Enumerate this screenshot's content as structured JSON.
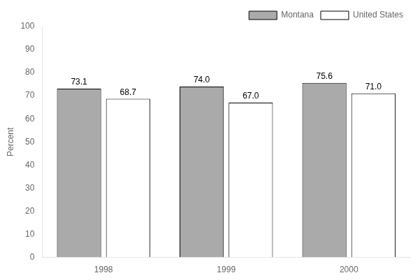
{
  "chart_data": {
    "type": "bar",
    "categories": [
      "1998",
      "1999",
      "2000"
    ],
    "series": [
      {
        "name": "Montana",
        "color": "#aaaaaa",
        "values": [
          73.1,
          74.0,
          75.6
        ],
        "value_labels": [
          "73.1",
          "74.0",
          "75.6"
        ]
      },
      {
        "name": "United States",
        "color": "#ffffff",
        "values": [
          68.7,
          67.0,
          71.0
        ],
        "value_labels": [
          "68.7",
          "67.0",
          "71.0"
        ]
      }
    ],
    "ylabel": "Percent",
    "ylim": [
      0,
      100
    ],
    "yticks": [
      0,
      10,
      20,
      30,
      40,
      50,
      60,
      70,
      80,
      90,
      100
    ],
    "grid": false,
    "legend": "upper right",
    "data_labels": true
  }
}
